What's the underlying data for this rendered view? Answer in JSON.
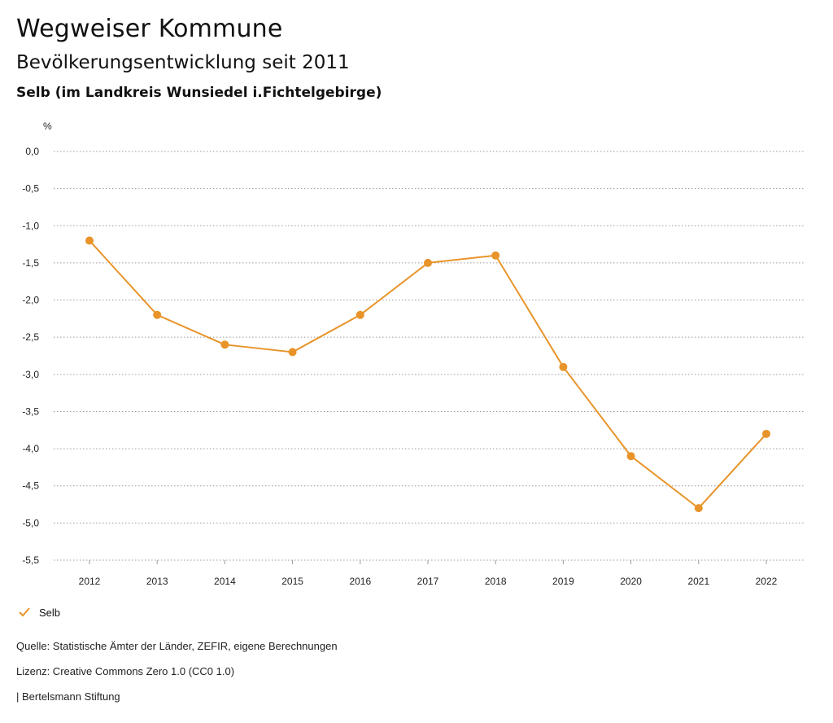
{
  "header": {
    "title": "Wegweiser Kommune",
    "subtitle": "Bevölkerungsentwicklung seit 2011",
    "region": "Selb (im Landkreis Wunsiedel i.Fichtelgebirge)"
  },
  "chart_data": {
    "type": "line",
    "ylabel": "%",
    "ylim": [
      -5.5,
      0.0
    ],
    "yticks": [
      "0,0",
      "-0,5",
      "-1,0",
      "-1,5",
      "-2,0",
      "-2,5",
      "-3,0",
      "-3,5",
      "-4,0",
      "-4,5",
      "-5,0",
      "-5,5"
    ],
    "ytick_values": [
      0,
      -0.5,
      -1.0,
      -1.5,
      -2.0,
      -2.5,
      -3.0,
      -3.5,
      -4.0,
      -4.5,
      -5.0,
      -5.5
    ],
    "categories": [
      "2012",
      "2013",
      "2014",
      "2015",
      "2016",
      "2017",
      "2018",
      "2019",
      "2020",
      "2021",
      "2022"
    ],
    "series": [
      {
        "name": "Selb",
        "color": "#E8942A",
        "values": [
          -1.2,
          -2.2,
          -2.6,
          -2.7,
          -2.2,
          -1.5,
          -1.4,
          -2.9,
          -4.1,
          -4.8,
          -3.8
        ]
      }
    ],
    "grid": true,
    "legend": "bottom-left"
  },
  "legend": {
    "label": "Selb",
    "icon": "check-icon"
  },
  "footer": {
    "source": "Quelle: Statistische Ämter der Länder, ZEFIR, eigene Berechnungen",
    "license": "Lizenz: Creative Commons Zero 1.0 (CC0 1.0)",
    "publisher": "| Bertelsmann Stiftung"
  }
}
